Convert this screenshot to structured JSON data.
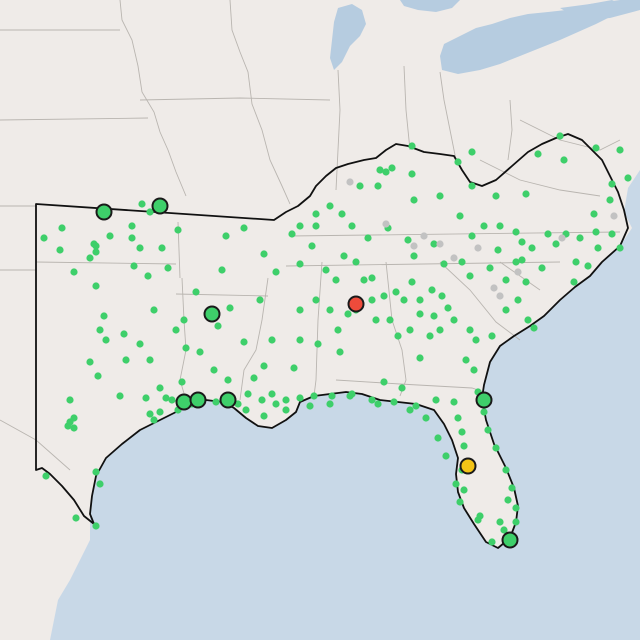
{
  "map": {
    "colors": {
      "land": "#efebe8",
      "land_alt": "#ebe7e3",
      "water": "#c8d8e7",
      "lake": "#b6cce0",
      "state_line": "#b9b5b0",
      "region_outline": "#111111",
      "site_green": "#3ecf6a",
      "site_red": "#ee4b3b",
      "site_yellow": "#f3c316",
      "site_gray": "#c2c2c2"
    },
    "legend": null
  },
  "sites": {
    "large": [
      {
        "status": "green"
      },
      {
        "status": "green"
      },
      {
        "status": "green"
      },
      {
        "status": "green"
      },
      {
        "status": "green"
      },
      {
        "status": "green"
      },
      {
        "status": "green"
      },
      {
        "status": "green"
      },
      {
        "status": "red"
      },
      {
        "status": "yellow"
      }
    ],
    "small_green_count": 250,
    "small_gray_count": 12
  }
}
